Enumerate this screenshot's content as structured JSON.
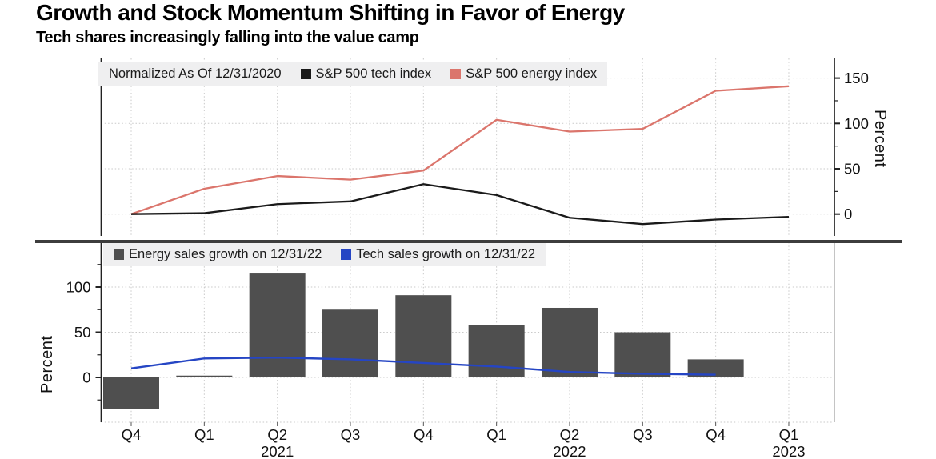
{
  "title": "Growth and Stock Momentum Shifting in Favor of Energy",
  "subtitle": "Tech shares increasingly falling into the value camp",
  "colors": {
    "tech_index_line": "#1a1a1a",
    "energy_index_line": "#db756c",
    "energy_bars": "#4f4f4f",
    "tech_sales_line": "#2545c4",
    "legend_background": "#efeff0",
    "gridline": "#c9c9c9",
    "divider": "#3d3d3d"
  },
  "x_axis": {
    "quarter_labels": [
      "Q4",
      "Q1",
      "Q2",
      "Q3",
      "Q4",
      "Q1",
      "Q2",
      "Q3",
      "Q4",
      "Q1"
    ],
    "year_labels": [
      {
        "text": "2021",
        "index": 2
      },
      {
        "text": "2022",
        "index": 6
      },
      {
        "text": "2023",
        "index": 9
      }
    ]
  },
  "chart_data": [
    {
      "type": "line",
      "panel": "top",
      "legend_note": "Normalized As Of 12/31/2020",
      "ylabel": "Percent",
      "yticks": [
        0,
        50,
        100,
        150
      ],
      "yticks_minor": [
        25,
        75,
        125
      ],
      "ylim": [
        -25,
        172
      ],
      "grid": true,
      "legend_position": "top-left",
      "categories": [
        "Q4 2020",
        "Q1 2021",
        "Q2 2021",
        "Q3 2021",
        "Q4 2021",
        "Q1 2022",
        "Q2 2022",
        "Q3 2022",
        "Q4 2022",
        "Q1 2023"
      ],
      "series": [
        {
          "name": "S&P 500 tech index",
          "color": "#1a1a1a",
          "values": [
            0,
            1,
            11,
            14,
            33,
            21,
            -4,
            -11,
            -6,
            -3
          ]
        },
        {
          "name": "S&P 500 energy index",
          "color": "#db756c",
          "values": [
            0,
            28,
            42,
            38,
            48,
            104,
            91,
            94,
            136,
            141
          ]
        }
      ]
    },
    {
      "type": "bar",
      "panel": "bottom",
      "ylabel": "Percent",
      "yticks": [
        0,
        50,
        100
      ],
      "yticks_minor": [
        -25,
        25,
        75,
        125
      ],
      "ylim": [
        -51,
        150
      ],
      "grid": true,
      "legend_position": "top-left",
      "categories": [
        "Q4 2020",
        "Q1 2021",
        "Q2 2021",
        "Q3 2021",
        "Q4 2021",
        "Q1 2022",
        "Q2 2022",
        "Q3 2022",
        "Q4 2022",
        "Q1 2023"
      ],
      "series": [
        {
          "name": "Energy sales growth on 12/31/22",
          "type": "bar",
          "color": "#4f4f4f",
          "values": [
            -35,
            2,
            115,
            75,
            91,
            58,
            77,
            50,
            20,
            null
          ]
        },
        {
          "name": "Tech sales growth on 12/31/22",
          "type": "line",
          "color": "#2545c4",
          "values": [
            10,
            21,
            22,
            20,
            16,
            12,
            6,
            4,
            3,
            null
          ]
        }
      ]
    }
  ]
}
